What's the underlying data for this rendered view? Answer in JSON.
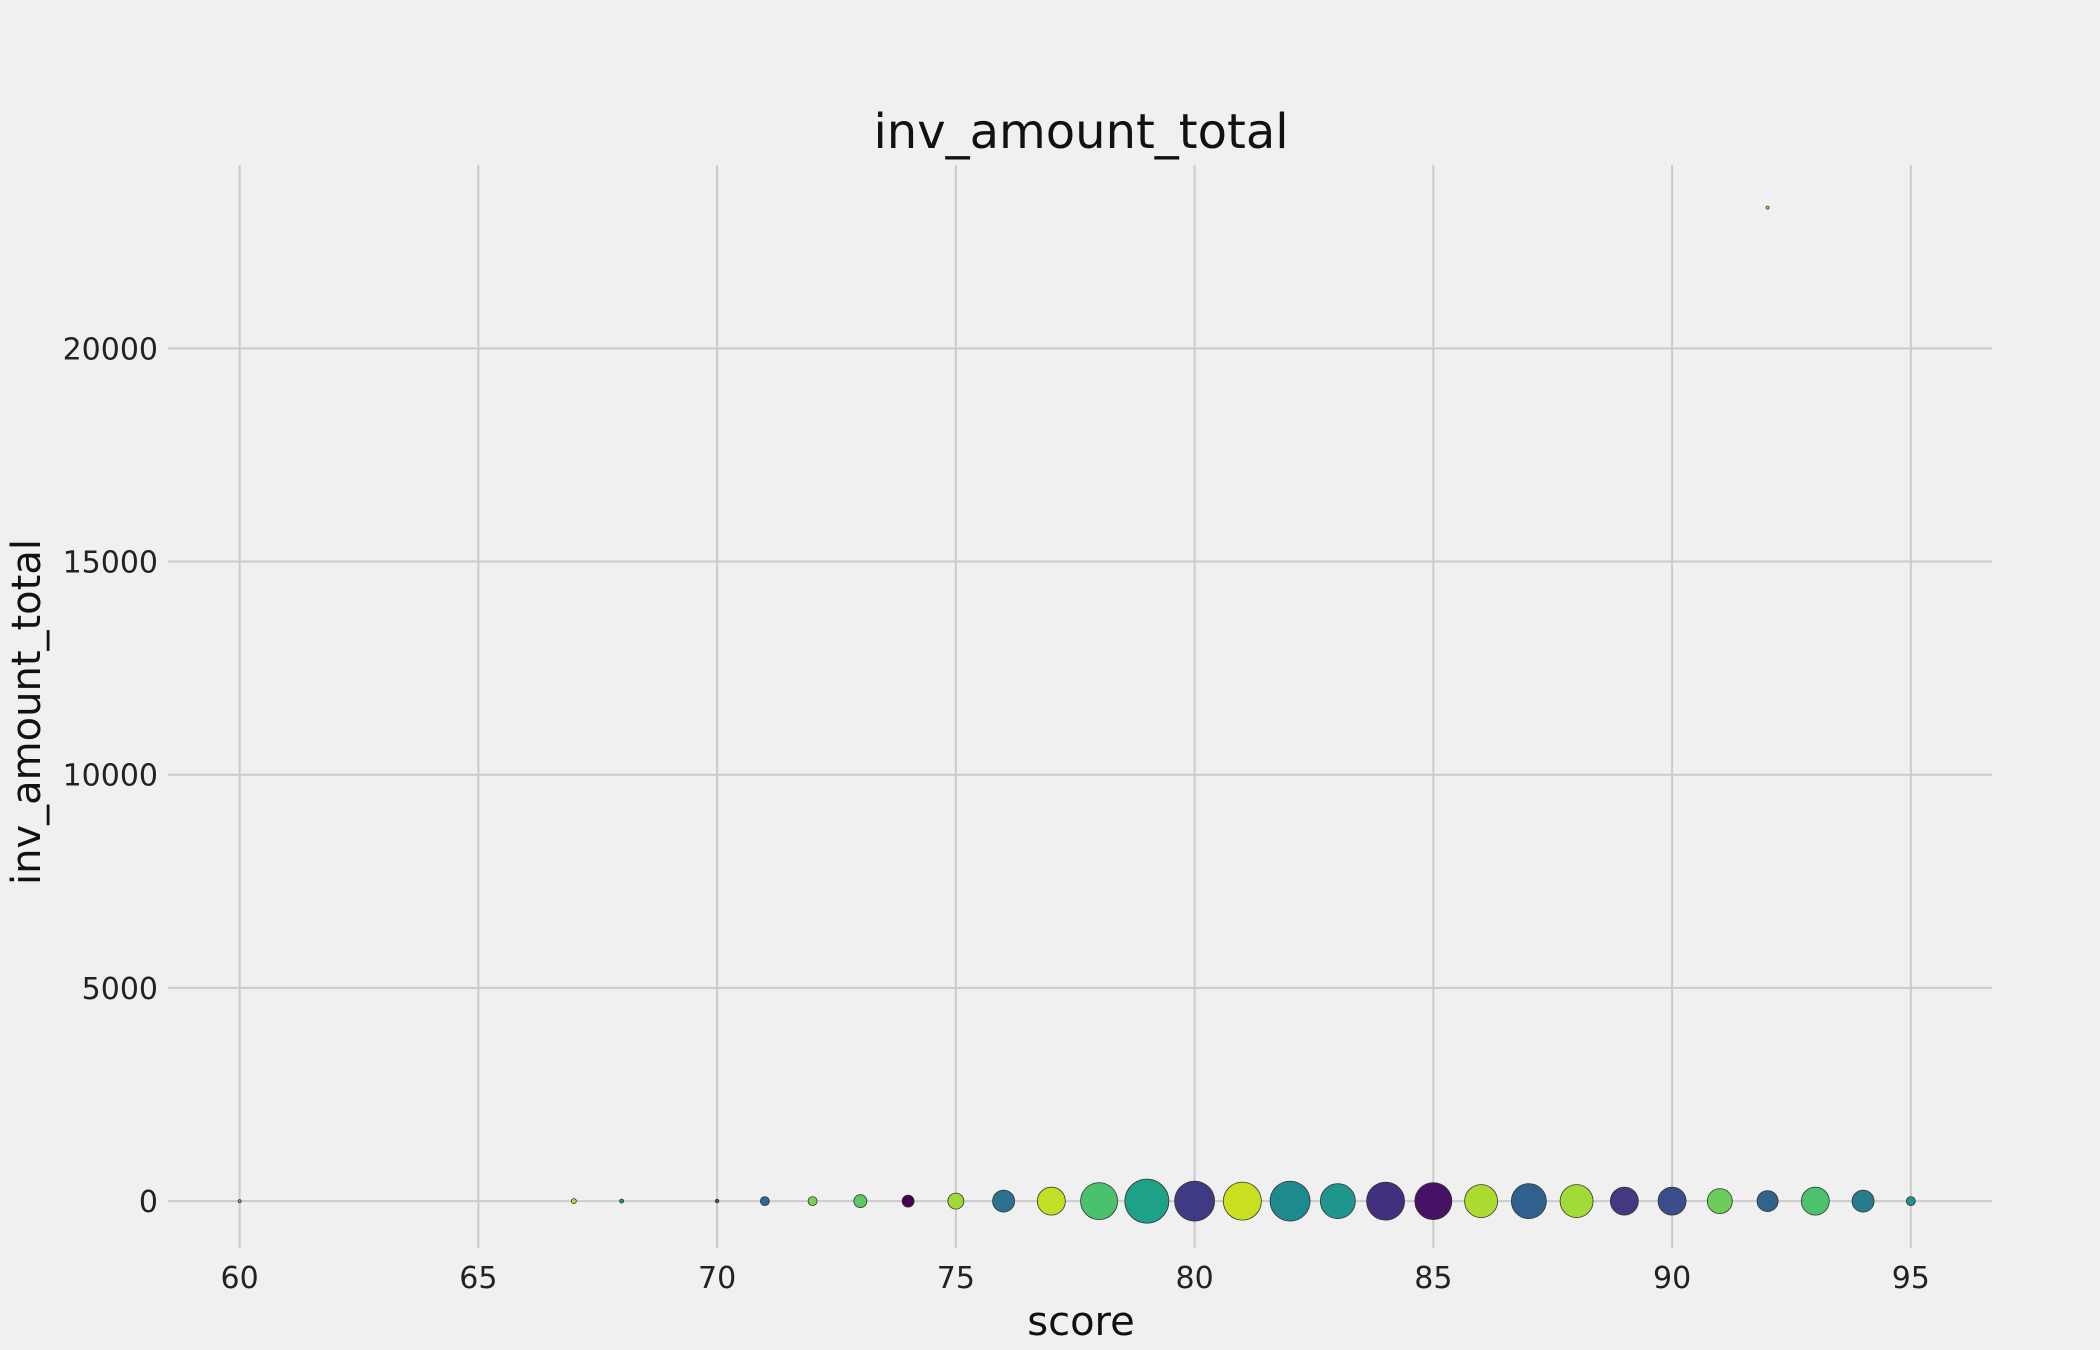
{
  "chart_data": {
    "type": "scatter",
    "title": "inv_amount_total",
    "xlabel": "score",
    "ylabel": "inv_amount_total",
    "xlim": [
      58.5,
      96.7
    ],
    "ylim": [
      -1100,
      24300
    ],
    "xticks": [
      60,
      65,
      70,
      75,
      80,
      85,
      90,
      95
    ],
    "yticks": [
      0,
      5000,
      10000,
      15000,
      20000
    ],
    "grid": true,
    "legend": "none",
    "note_marker_size": "marker area grows with point count (relative size given as 'size')",
    "points": [
      {
        "x": 60,
        "y": 0,
        "size": 1.5,
        "color": "#5ec962"
      },
      {
        "x": 67,
        "y": 0,
        "size": 2.5,
        "color": "#b5de2b"
      },
      {
        "x": 68,
        "y": 0,
        "size": 2.0,
        "color": "#21918c"
      },
      {
        "x": 70,
        "y": 0,
        "size": 1.8,
        "color": "#3b528b"
      },
      {
        "x": 71,
        "y": 0,
        "size": 4.5,
        "color": "#31688e"
      },
      {
        "x": 72,
        "y": 0,
        "size": 4.5,
        "color": "#7ad151"
      },
      {
        "x": 73,
        "y": 0,
        "size": 6.5,
        "color": "#5ec962"
      },
      {
        "x": 74,
        "y": 0,
        "size": 6.0,
        "color": "#440154"
      },
      {
        "x": 75,
        "y": 0,
        "size": 8.0,
        "color": "#a0da39"
      },
      {
        "x": 76,
        "y": 0,
        "size": 11.0,
        "color": "#2c728e"
      },
      {
        "x": 77,
        "y": 0,
        "size": 14.0,
        "color": "#c2df23"
      },
      {
        "x": 78,
        "y": 0,
        "size": 18.5,
        "color": "#4ac16d"
      },
      {
        "x": 79,
        "y": 0,
        "size": 22.0,
        "color": "#1fa187"
      },
      {
        "x": 80,
        "y": 0,
        "size": 20.0,
        "color": "#3e3a83"
      },
      {
        "x": 81,
        "y": 0,
        "size": 19.0,
        "color": "#c8e020"
      },
      {
        "x": 82,
        "y": 0,
        "size": 20.0,
        "color": "#1e8a8d"
      },
      {
        "x": 83,
        "y": 0,
        "size": 17.5,
        "color": "#1f958b"
      },
      {
        "x": 84,
        "y": 0,
        "size": 19.0,
        "color": "#42307d"
      },
      {
        "x": 85,
        "y": 0,
        "size": 18.5,
        "color": "#471265"
      },
      {
        "x": 86,
        "y": 0,
        "size": 16.5,
        "color": "#addc30"
      },
      {
        "x": 87,
        "y": 0,
        "size": 17.5,
        "color": "#30608d"
      },
      {
        "x": 88,
        "y": 0,
        "size": 16.5,
        "color": "#a2da37"
      },
      {
        "x": 89,
        "y": 0,
        "size": 14.0,
        "color": "#453781"
      },
      {
        "x": 90,
        "y": 0,
        "size": 14.0,
        "color": "#3b4d8a"
      },
      {
        "x": 91,
        "y": 0,
        "size": 12.5,
        "color": "#6ccd5a"
      },
      {
        "x": 92,
        "y": 0,
        "size": 10.5,
        "color": "#33628d"
      },
      {
        "x": 93,
        "y": 0,
        "size": 14.0,
        "color": "#4cc26c"
      },
      {
        "x": 94,
        "y": 0,
        "size": 11.0,
        "color": "#287c8e"
      },
      {
        "x": 95,
        "y": 0,
        "size": 4.5,
        "color": "#20928c"
      },
      {
        "x": 92,
        "y": 23300,
        "size": 1.5,
        "color": "#d2e21b"
      }
    ]
  }
}
